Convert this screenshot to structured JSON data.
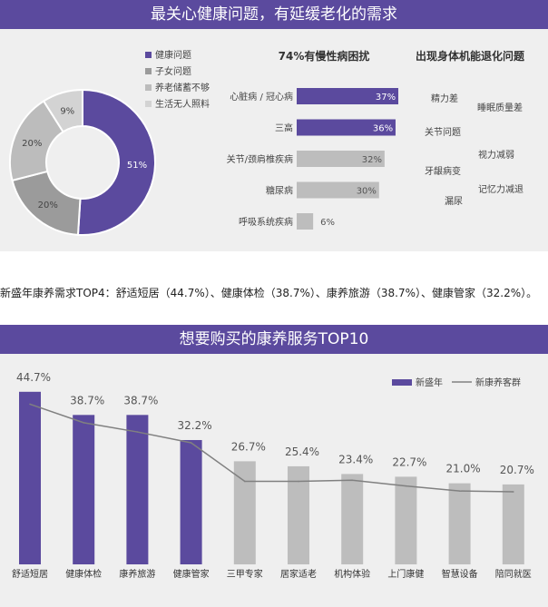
{
  "section1": {
    "title": "最关心健康问题，有延缓老化的需求",
    "chronic_title": "74%有慢性病困扰",
    "decline_title": "出现身体机能退化问题",
    "decline_words": [
      "精力差",
      "睡眠质量差",
      "关节问题",
      "视力减弱",
      "牙龈病变",
      "记忆力减退",
      "漏尿"
    ]
  },
  "intro_text": "新盛年康养需求TOP4：舒适短居（44.7%）、健康体检（38.7%）、康养旅游（38.7%）、健康管家（32.2%）。",
  "section2": {
    "title": "想要购买的康养服务TOP10"
  },
  "colors": {
    "purple": "#5b4a9e",
    "dark_gray": "#9b9b9b",
    "mid_gray": "#bcbcbc",
    "light_gray": "#d3d3d3",
    "bar_gray": "#bdbdbd",
    "line_gray": "#808080",
    "panel_bg": "#efefef"
  },
  "chart_data": [
    {
      "type": "pie",
      "labels": [
        "健康问题",
        "子女问题",
        "养老储蓄不够",
        "生活无人照料"
      ],
      "values": [
        51,
        20,
        20,
        9
      ],
      "value_labels": [
        "51%",
        "20%",
        "20%",
        "9%"
      ],
      "legend": "top-right"
    },
    {
      "type": "bar",
      "orientation": "horizontal",
      "title": "74%有慢性病困扰",
      "categories": [
        "心脏病 / 冠心病",
        "三高",
        "关节/颈肩椎疾病",
        "糖尿病",
        "呼吸系统疾病"
      ],
      "values": [
        37,
        36,
        32,
        30,
        6
      ],
      "value_labels": [
        "37%",
        "36%",
        "32%",
        "30%",
        "6%"
      ],
      "highlight": [
        true,
        true,
        false,
        false,
        false
      ]
    },
    {
      "type": "bar",
      "categories": [
        "舒适短居",
        "健康体检",
        "康养旅游",
        "健康管家",
        "三甲专家",
        "居家适老",
        "机构体验",
        "上门康健",
        "智慧设备",
        "陪同就医"
      ],
      "series": [
        {
          "name": "新盛年",
          "type": "bar",
          "values": [
            44.7,
            38.7,
            38.7,
            32.2,
            26.7,
            25.4,
            23.4,
            22.7,
            21.0,
            20.7
          ]
        },
        {
          "name": "新康养客群",
          "type": "line",
          "values": [
            41.5,
            36.7,
            34.3,
            31.5,
            21.5,
            21.5,
            21.8,
            20.3,
            19.0,
            18.8
          ]
        }
      ],
      "value_labels": [
        "44.7%",
        "38.7%",
        "38.7%",
        "32.2%",
        "26.7%",
        "25.4%",
        "23.4%",
        "22.7%",
        "21.0%",
        "20.7%"
      ],
      "top_n_highlight": 4,
      "ylim": [
        0,
        52
      ],
      "legend": "top-right",
      "grid": false
    }
  ]
}
